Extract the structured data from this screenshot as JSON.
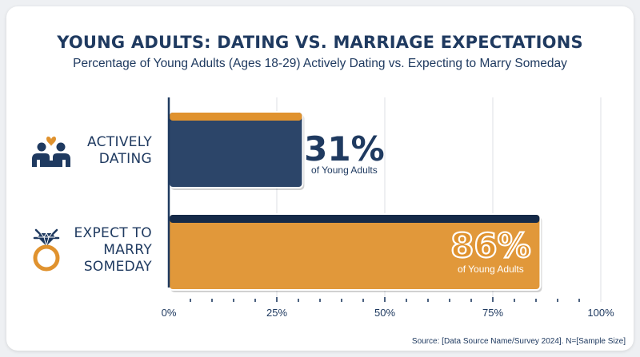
{
  "chart_data": {
    "type": "bar",
    "orientation": "horizontal",
    "title": "YOUNG ADULTS: DATING VS. MARRIAGE EXPECTATIONS",
    "subtitle": "Percentage of Young Adults (Ages 18-29) Actively Dating vs. Expecting to Marry Someday",
    "categories": [
      "ACTIVELY DATING",
      "EXPECT TO MARRY SOMEDAY"
    ],
    "category_lines": [
      [
        "ACTIVELY",
        "DATING"
      ],
      [
        "EXPECT TO",
        "MARRY",
        "SOMEDAY"
      ]
    ],
    "values": [
      31,
      86
    ],
    "value_labels": [
      "31%",
      "86%"
    ],
    "value_caption": "of Young Adults",
    "xlim": [
      0,
      100
    ],
    "x_ticks": [
      0,
      25,
      50,
      75,
      100
    ],
    "x_tick_labels": [
      "0%",
      "25%",
      "50%",
      "75%",
      "100%"
    ],
    "grid": true,
    "colors": {
      "navy": "#1f3a60",
      "navy_dark": "#152a48",
      "orange": "#e0922e",
      "orange_dark": "#b86e1c",
      "gridline": "#dcdfe4"
    },
    "icons": [
      "couple-with-heart-icon",
      "diamond-ring-icon"
    ],
    "source": "Source: [Data Source Name/Survey 2024]. N=[Sample Size]"
  }
}
